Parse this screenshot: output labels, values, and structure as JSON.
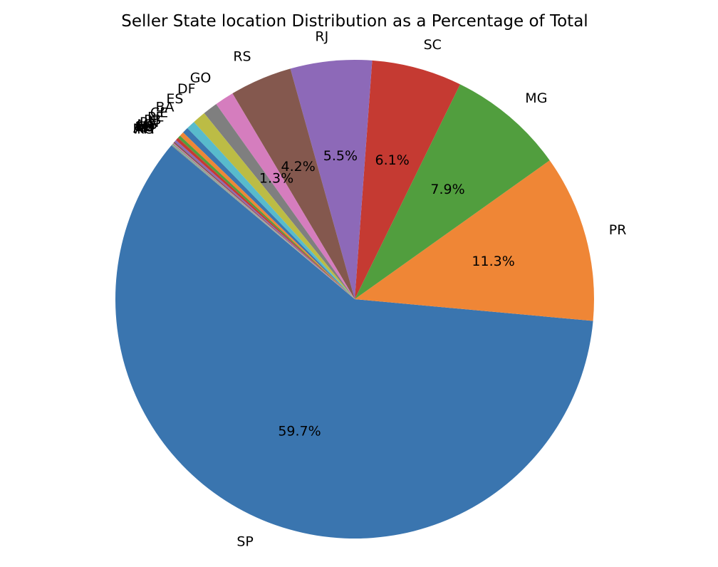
{
  "chart_data": {
    "type": "pie",
    "title": "Seller State location Distribution as a Percentage of Total",
    "start_angle_deg": 140,
    "direction": "counterclockwise",
    "slices": [
      {
        "label": "SP",
        "value": 59.7,
        "pct_label": "59.7%",
        "color": "#3a75af"
      },
      {
        "label": "PR",
        "value": 11.3,
        "pct_label": "11.3%",
        "color": "#ef8636"
      },
      {
        "label": "MG",
        "value": 7.9,
        "pct_label": "7.9%",
        "color": "#519e3e"
      },
      {
        "label": "SC",
        "value": 6.1,
        "pct_label": "6.1%",
        "color": "#c53a32"
      },
      {
        "label": "RJ",
        "value": 5.5,
        "pct_label": "5.5%",
        "color": "#8d69b8"
      },
      {
        "label": "RS",
        "value": 4.2,
        "pct_label": "4.2%",
        "color": "#84584e"
      },
      {
        "label": "GO",
        "value": 1.3,
        "pct_label": "1.3%",
        "color": "#d57dbe"
      },
      {
        "label": "DF",
        "value": 1.0,
        "pct_label": "",
        "color": "#7f7f7f"
      },
      {
        "label": "ES",
        "value": 0.9,
        "pct_label": "",
        "color": "#bcbc45"
      },
      {
        "label": "BA",
        "value": 0.6,
        "pct_label": "",
        "color": "#58bbcc"
      },
      {
        "label": "CE",
        "value": 0.4,
        "pct_label": "",
        "color": "#3a75af"
      },
      {
        "label": "PE",
        "value": 0.3,
        "pct_label": "",
        "color": "#ef8636"
      },
      {
        "label": "PB",
        "value": 0.2,
        "pct_label": "",
        "color": "#519e3e"
      },
      {
        "label": "RN",
        "value": 0.2,
        "pct_label": "",
        "color": "#c53a32"
      },
      {
        "label": "MS",
        "value": 0.15,
        "pct_label": "",
        "color": "#8d69b8"
      },
      {
        "label": "MT",
        "value": 0.1,
        "pct_label": "",
        "color": "#84584e"
      },
      {
        "label": "RO",
        "value": 0.05,
        "pct_label": "",
        "color": "#d57dbe"
      },
      {
        "label": "PI",
        "value": 0.05,
        "pct_label": "",
        "color": "#7f7f7f"
      },
      {
        "label": "AM",
        "value": 0.03,
        "pct_label": "",
        "color": "#bcbc45"
      },
      {
        "label": "MA",
        "value": 0.03,
        "pct_label": "",
        "color": "#58bbcc"
      },
      {
        "label": "PA",
        "value": 0.03,
        "pct_label": "",
        "color": "#3a75af"
      },
      {
        "label": "AC",
        "value": 0.02,
        "pct_label": "",
        "color": "#ef8636"
      }
    ]
  }
}
